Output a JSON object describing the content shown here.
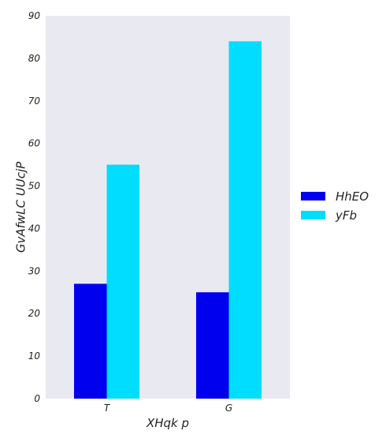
{
  "chart_data": {
    "type": "bar",
    "title": "",
    "xlabel": "XHqk p",
    "ylabel": "GvAfwLC UUcjP",
    "categories": [
      "T",
      "G"
    ],
    "series": [
      {
        "name": "HhEO",
        "values": [
          27,
          25
        ],
        "color": "#0000ee"
      },
      {
        "name": "yFb",
        "values": [
          55,
          84
        ],
        "color": "#00ddff"
      }
    ],
    "ylim": [
      0,
      90
    ],
    "yticks": [
      0,
      10,
      20,
      30,
      40,
      50,
      60,
      70,
      80,
      90
    ],
    "grid": false,
    "legend_position": "right",
    "background": "#e9e9f2"
  }
}
